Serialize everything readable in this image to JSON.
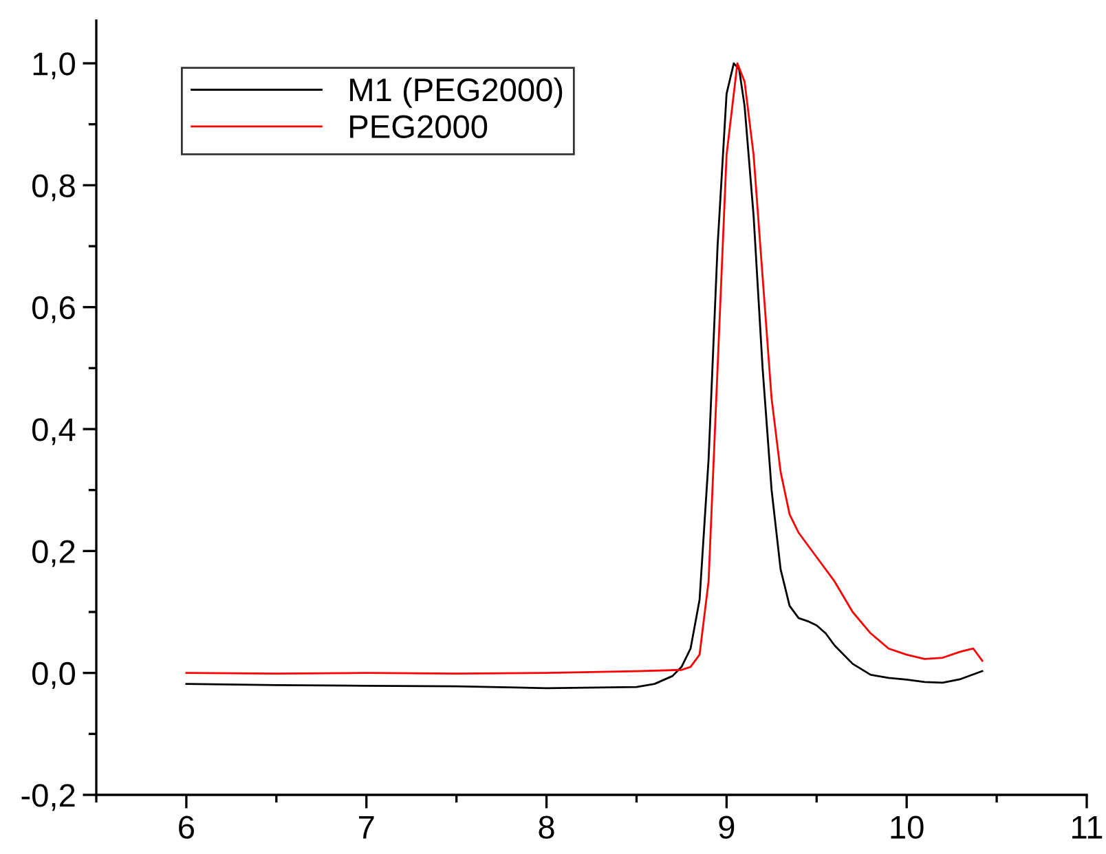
{
  "chart_data": {
    "type": "line",
    "xlim": [
      5.5,
      11
    ],
    "xticks": [
      6,
      7,
      8,
      9,
      10,
      11
    ],
    "ylim": [
      -0.2,
      1.07
    ],
    "yticks": [
      {
        "value": -0.2,
        "label": "-0,2"
      },
      {
        "value": 0,
        "label": "0,0"
      },
      {
        "value": 0.2,
        "label": "0,2"
      },
      {
        "value": 0.4,
        "label": "0,4"
      },
      {
        "value": 0.6,
        "label": "0,6"
      },
      {
        "value": 0.8,
        "label": "0,8"
      },
      {
        "value": 1.0,
        "label": "1,0"
      }
    ],
    "grid": false,
    "legend": "top left",
    "marker": "none",
    "line_style": "solid",
    "series": [
      {
        "name": "M1 (PEG2000)",
        "color": "#000000",
        "x": [
          6,
          6.5,
          7,
          7.5,
          8,
          8.5,
          8.6,
          8.7,
          8.75,
          8.8,
          8.85,
          8.9,
          8.95,
          9.0,
          9.04,
          9.07,
          9.1,
          9.15,
          9.2,
          9.25,
          9.3,
          9.35,
          9.4,
          9.45,
          9.5,
          9.55,
          9.6,
          9.7,
          9.8,
          9.9,
          10.0,
          10.1,
          10.2,
          10.3,
          10.42
        ],
        "values": [
          -0.018,
          -0.02,
          -0.021,
          -0.022,
          -0.025,
          -0.023,
          -0.018,
          -0.005,
          0.01,
          0.04,
          0.12,
          0.35,
          0.7,
          0.95,
          1.0,
          0.99,
          0.93,
          0.75,
          0.5,
          0.3,
          0.17,
          0.11,
          0.09,
          0.085,
          0.078,
          0.065,
          0.045,
          0.015,
          -0.003,
          -0.008,
          -0.011,
          -0.015,
          -0.016,
          -0.01,
          0.003
        ]
      },
      {
        "name": "PEG2000",
        "color": "#ff0000",
        "x": [
          6,
          6.5,
          7,
          7.5,
          8,
          8.5,
          8.75,
          8.8,
          8.85,
          8.9,
          8.95,
          9.0,
          9.06,
          9.1,
          9.15,
          9.2,
          9.25,
          9.3,
          9.35,
          9.4,
          9.5,
          9.6,
          9.7,
          9.8,
          9.9,
          10.0,
          10.1,
          10.2,
          10.3,
          10.37,
          10.42
        ],
        "values": [
          0.0,
          -0.001,
          0.0,
          -0.001,
          0.0,
          0.003,
          0.005,
          0.01,
          0.03,
          0.15,
          0.5,
          0.85,
          1.0,
          0.97,
          0.85,
          0.65,
          0.45,
          0.33,
          0.26,
          0.23,
          0.19,
          0.15,
          0.1,
          0.065,
          0.04,
          0.03,
          0.023,
          0.025,
          0.035,
          0.04,
          0.02
        ]
      }
    ]
  }
}
